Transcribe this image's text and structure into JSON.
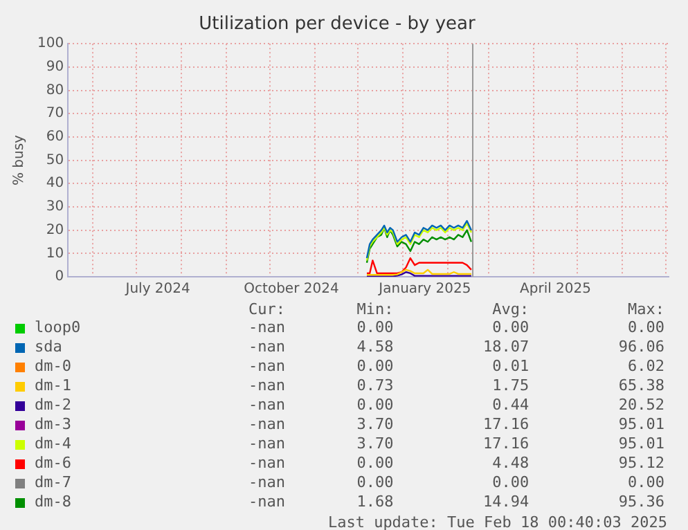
{
  "chart_data": {
    "type": "line",
    "title": "Utilization per device - by year",
    "ylabel": "% busy",
    "x": [
      "2024-12-07",
      "2024-12-09",
      "2024-12-11",
      "2024-12-14",
      "2024-12-17",
      "2024-12-19",
      "2024-12-21",
      "2024-12-23",
      "2024-12-25",
      "2024-12-28",
      "2024-12-31",
      "2025-01-03",
      "2025-01-06",
      "2025-01-09",
      "2025-01-12",
      "2025-01-15",
      "2025-01-18",
      "2025-01-21",
      "2025-01-24",
      "2025-01-27",
      "2025-01-30",
      "2025-02-02",
      "2025-02-05",
      "2025-02-08",
      "2025-02-11",
      "2025-02-14",
      "2025-02-17"
    ],
    "series": [
      {
        "name": "loop0",
        "color": "#00cc00",
        "values": [
          null,
          null,
          null,
          null,
          null,
          null,
          null,
          null,
          null,
          null,
          null,
          null,
          null,
          null,
          null,
          null,
          null,
          null,
          null,
          null,
          null,
          null,
          null,
          null,
          null,
          null,
          null
        ]
      },
      {
        "name": "sda",
        "color": "#0066b3",
        "values": [
          8,
          14,
          16,
          18,
          20,
          22,
          19,
          21,
          20,
          15,
          17,
          18,
          15,
          19,
          18,
          21,
          20,
          22,
          21,
          22,
          20,
          22,
          21,
          22,
          21,
          24,
          20
        ]
      },
      {
        "name": "dm-0",
        "color": "#ff8000",
        "values": [
          null,
          null,
          null,
          null,
          null,
          null,
          null,
          null,
          null,
          null,
          null,
          null,
          null,
          null,
          null,
          null,
          null,
          null,
          null,
          null,
          null,
          null,
          null,
          null,
          null,
          null,
          null
        ]
      },
      {
        "name": "dm-1",
        "color": "#ffcc00",
        "values": [
          0.8,
          0.8,
          0.8,
          0.8,
          0.8,
          0.8,
          0.8,
          0.8,
          0.8,
          1,
          2,
          3,
          2.5,
          1.5,
          1.5,
          1.5,
          3,
          1.2,
          1.2,
          1.2,
          1.2,
          1.2,
          2,
          1.2,
          1.2,
          1.2,
          1.2
        ]
      },
      {
        "name": "dm-2",
        "color": "#330099",
        "values": [
          0.2,
          0.2,
          0.2,
          0.2,
          0.2,
          0.2,
          0.2,
          0.2,
          0.2,
          0.5,
          1,
          2,
          1.5,
          0.4,
          0.4,
          0.4,
          0.4,
          0.4,
          0.4,
          0.4,
          0.4,
          0.4,
          0.4,
          0.4,
          0.4,
          0.4,
          0.4
        ]
      },
      {
        "name": "dm-3",
        "color": "#990099",
        "values": [
          null,
          null,
          null,
          null,
          null,
          null,
          null,
          null,
          null,
          null,
          null,
          null,
          null,
          null,
          null,
          null,
          null,
          null,
          null,
          null,
          null,
          null,
          null,
          null,
          null,
          null,
          null
        ]
      },
      {
        "name": "dm-4",
        "color": "#ccff00",
        "values": [
          7,
          13,
          15,
          17,
          19,
          21,
          18,
          20,
          19,
          14,
          16,
          17,
          14,
          18,
          17,
          20,
          19,
          21,
          20,
          21,
          19,
          21,
          20,
          21,
          20,
          23,
          19
        ]
      },
      {
        "name": "dm-6",
        "color": "#ff0000",
        "values": [
          1.5,
          1.5,
          7,
          1.5,
          1.5,
          1.5,
          1.5,
          1.5,
          1.5,
          1.5,
          2,
          4,
          8,
          5,
          6,
          6,
          6,
          6,
          6,
          6,
          6,
          6,
          6,
          6,
          6,
          5,
          3
        ]
      },
      {
        "name": "dm-7",
        "color": "#808080",
        "values": [
          null,
          null,
          null,
          null,
          null,
          null,
          null,
          null,
          null,
          null,
          null,
          null,
          null,
          null,
          null,
          null,
          null,
          null,
          null,
          null,
          null,
          null,
          null,
          null,
          null,
          null,
          null
        ]
      },
      {
        "name": "dm-8",
        "color": "#008f00",
        "values": [
          6,
          12,
          14,
          17,
          18,
          21,
          17,
          20,
          18,
          13,
          15,
          14,
          11,
          15,
          14,
          16,
          15,
          17,
          16,
          17,
          16,
          17,
          16,
          18,
          17,
          20,
          15
        ]
      }
    ],
    "xlim": [
      "2024-05-15",
      "2025-07-03"
    ],
    "xticks": [
      {
        "value": "2024-06-01",
        "label": null
      },
      {
        "value": "2024-07-01",
        "label": null
      },
      {
        "value": "2024-07-16",
        "label": "July 2024"
      },
      {
        "value": "2024-08-01",
        "label": null
      },
      {
        "value": "2024-09-01",
        "label": null
      },
      {
        "value": "2024-10-01",
        "label": null
      },
      {
        "value": "2024-10-16",
        "label": "October 2024"
      },
      {
        "value": "2024-11-01",
        "label": null
      },
      {
        "value": "2024-12-01",
        "label": null
      },
      {
        "value": "2025-01-01",
        "label": null
      },
      {
        "value": "2025-01-16",
        "label": "January 2025"
      },
      {
        "value": "2025-02-01",
        "label": null
      },
      {
        "value": "2025-03-01",
        "label": null
      },
      {
        "value": "2025-04-01",
        "label": null
      },
      {
        "value": "2025-04-16",
        "label": "April 2025"
      },
      {
        "value": "2025-05-01",
        "label": null
      },
      {
        "value": "2025-06-01",
        "label": null
      },
      {
        "value": "2025-07-01",
        "label": null
      }
    ],
    "ylim": [
      0,
      100
    ],
    "yticks": [
      0,
      10,
      20,
      30,
      40,
      50,
      60,
      70,
      80,
      90,
      100
    ],
    "ref_lines": [
      {
        "axis": "x",
        "value": "2025-02-18",
        "color": "#999999"
      }
    ],
    "grid": true,
    "legend": "bottom",
    "line_style": "solid",
    "marker": "none",
    "annotations": [
      "Cur:",
      "Min:",
      "Avg:",
      "Max:",
      "-nan",
      "0.00",
      "0.00",
      "0.00",
      "-nan",
      "4.58",
      "18.07",
      "96.06",
      "-nan",
      "0.00",
      "0.01",
      "6.02",
      "-nan",
      "0.73",
      "1.75",
      "65.38",
      "-nan",
      "0.00",
      "0.44",
      "20.52",
      "-nan",
      "3.70",
      "17.16",
      "95.01",
      "-nan",
      "3.70",
      "17.16",
      "95.01",
      "-nan",
      "0.00",
      "4.48",
      "95.12",
      "-nan",
      "0.00",
      "0.00",
      "0.00",
      "-nan",
      "1.68",
      "14.94",
      "95.36",
      "Last update: Tue Feb 18 00:40:03 2025"
    ]
  }
}
